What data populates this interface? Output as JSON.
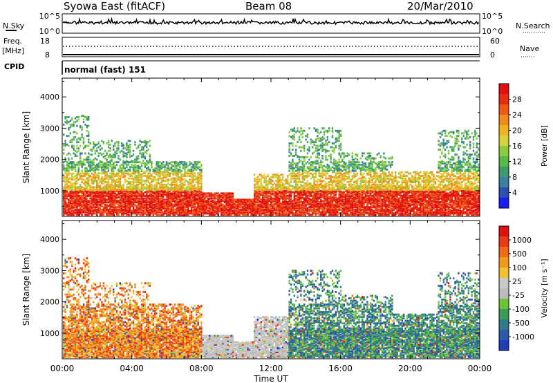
{
  "header": {
    "station": "Syowa East (fitACF)",
    "beam": "Beam 08",
    "date": "20/Mar/2010"
  },
  "side_labels": {
    "nsky": "N.Sky",
    "nsearch": "N.Search",
    "freq": "Freq.",
    "freq_unit": "[MHz]",
    "nave": "Nave",
    "cpid": "CPID",
    "cpid_value": "normal (fast) 151",
    "nsky_ticks": [
      "10^5",
      "10^0"
    ],
    "nsearch_ticks": [
      "10^5",
      "10^0"
    ],
    "freq_ticks": [
      "18",
      "8"
    ],
    "nave_ticks": [
      "60",
      "0"
    ]
  },
  "chart_data": [
    {
      "type": "heatmap",
      "name": "power",
      "ylabel": "Slant Range [km]",
      "xlabel": "",
      "ylim": [
        180,
        4600
      ],
      "yticks": [
        1000,
        2000,
        3000,
        4000
      ],
      "xticks": [
        "00:00",
        "04:00",
        "08:00",
        "12:00",
        "16:00",
        "20:00",
        "00:00"
      ],
      "colorbar": {
        "label": "Power [dB]",
        "ticks": [
          "4",
          "8",
          "12",
          "16",
          "20",
          "24",
          "28"
        ],
        "colors": [
          "#1b1bf5",
          "#2c4fb0",
          "#3a7fa0",
          "#3d9a6e",
          "#56b84a",
          "#8ccc3c",
          "#d8d23a",
          "#f0b21e",
          "#f08a1a",
          "#ee5a16",
          "#e82a12",
          "#e01010"
        ]
      }
    },
    {
      "type": "heatmap",
      "name": "velocity",
      "ylabel": "Slant Range [km]",
      "xlabel": "Time UT",
      "ylim": [
        180,
        4600
      ],
      "yticks": [
        1000,
        2000,
        3000,
        4000
      ],
      "xticks": [
        "00:00",
        "04:00",
        "08:00",
        "12:00",
        "16:00",
        "20:00",
        "00:00"
      ],
      "colorbar": {
        "label": "Velocity [m s⁻¹]",
        "ticks": [
          "1000",
          "500",
          "100",
          "25",
          "-25",
          "-100",
          "-500",
          "-1000"
        ],
        "colors": [
          "#1f3fb8",
          "#2c5aa8",
          "#2f7a8a",
          "#3a9a5a",
          "#6cc33a",
          "#bcbcbc",
          "#c8c8c8",
          "#f0c030",
          "#f09a1a",
          "#ee6a18",
          "#e83a14",
          "#e01010"
        ]
      }
    }
  ]
}
